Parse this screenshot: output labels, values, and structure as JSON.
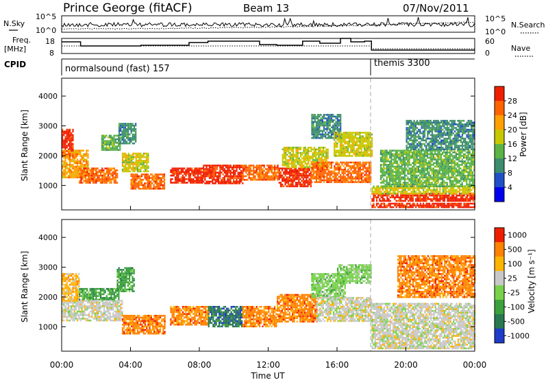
{
  "header": {
    "station": "Prince George (fitACF)",
    "beam": "Beam 13",
    "date": "07/Nov/2011"
  },
  "noise_panel": {
    "left_label": "N.Sky",
    "right_label": "N.Search",
    "left_ticks": [
      "10^5",
      "10^0"
    ],
    "right_ticks": [
      "10^5",
      "10^0"
    ]
  },
  "freq_panel": {
    "left_label_1": "Freq.",
    "left_label_2": "[MHz]",
    "right_label": "Nave",
    "left_ticks": [
      "18",
      "8"
    ],
    "right_ticks": [
      "60",
      "0"
    ]
  },
  "cpid_panel": {
    "label": "CPID",
    "modes": [
      {
        "name": "normalsound (fast) 157",
        "start_hour": 0
      },
      {
        "name": "themis 3300",
        "start_hour": 18
      }
    ]
  },
  "chart_data": [
    {
      "type": "heatmap",
      "name": "power",
      "ylabel": "Slant Range [km]",
      "ylim": [
        180,
        4600
      ],
      "yticks": [
        "1000",
        "2000",
        "3000",
        "4000"
      ],
      "xlim": [
        0,
        24
      ],
      "colorbar": {
        "label": "Power [dB]",
        "tick_labels": [
          "4",
          "8",
          "12",
          "16",
          "20",
          "24",
          "28"
        ],
        "colors": [
          "#0000f0",
          "#2050c8",
          "#3c8c6e",
          "#5ab446",
          "#c8c800",
          "#ffa000",
          "#ff6400",
          "#f01e00"
        ]
      },
      "bands": [
        {
          "t0": 0.0,
          "t1": 0.7,
          "r0": 2000,
          "r1": 2900,
          "c": 7
        },
        {
          "t0": 0.0,
          "t1": 1.5,
          "r0": 1300,
          "r1": 2200,
          "c": 5
        },
        {
          "t0": 1.0,
          "t1": 3.2,
          "r0": 1100,
          "r1": 1600,
          "c": 6
        },
        {
          "t0": 2.3,
          "t1": 3.4,
          "r0": 2200,
          "r1": 2700,
          "c": 3
        },
        {
          "t0": 3.3,
          "t1": 4.3,
          "r0": 2400,
          "r1": 3100,
          "c": 2
        },
        {
          "t0": 3.5,
          "t1": 5.0,
          "r0": 1500,
          "r1": 2100,
          "c": 4
        },
        {
          "t0": 4.0,
          "t1": 6.0,
          "r0": 900,
          "r1": 1400,
          "c": 6
        },
        {
          "t0": 6.3,
          "t1": 8.2,
          "r0": 1100,
          "r1": 1600,
          "c": 7
        },
        {
          "t0": 8.2,
          "t1": 10.5,
          "r0": 1100,
          "r1": 1700,
          "c": 7
        },
        {
          "t0": 10.5,
          "t1": 12.6,
          "r0": 1200,
          "r1": 1700,
          "c": 6
        },
        {
          "t0": 12.6,
          "t1": 14.5,
          "r0": 1000,
          "r1": 1600,
          "c": 7
        },
        {
          "t0": 12.8,
          "t1": 15.5,
          "r0": 1600,
          "r1": 2300,
          "c": 4
        },
        {
          "t0": 14.5,
          "t1": 16.2,
          "r0": 2600,
          "r1": 3400,
          "c": 2
        },
        {
          "t0": 14.5,
          "t1": 18.0,
          "r0": 1100,
          "r1": 1800,
          "c": 6
        },
        {
          "t0": 15.8,
          "t1": 18.0,
          "r0": 2000,
          "r1": 2800,
          "c": 4
        },
        {
          "t0": 18.0,
          "t1": 24.0,
          "r0": 250,
          "r1": 420,
          "c": 7
        },
        {
          "t0": 18.0,
          "t1": 24.0,
          "r0": 500,
          "r1": 750,
          "c": 7
        },
        {
          "t0": 18.0,
          "t1": 24.0,
          "r0": 750,
          "r1": 1000,
          "c": 4
        },
        {
          "t0": 18.5,
          "t1": 24.0,
          "r0": 1000,
          "r1": 2200,
          "c": 3
        },
        {
          "t0": 20.0,
          "t1": 24.0,
          "r0": 2200,
          "r1": 3200,
          "c": 2
        }
      ]
    },
    {
      "type": "heatmap",
      "name": "velocity",
      "ylabel": "Slant Range [km]",
      "xlabel": "Time UT",
      "ylim": [
        180,
        4600
      ],
      "yticks": [
        "1000",
        "2000",
        "3000",
        "4000"
      ],
      "xlim": [
        0,
        24
      ],
      "xticks": [
        "00:00",
        "04:00",
        "08:00",
        "12:00",
        "16:00",
        "20:00",
        "00:00"
      ],
      "colorbar": {
        "label": "Velocity [m s⁻¹]",
        "tick_labels": [
          "1000",
          "500",
          "100",
          "25",
          "-25",
          "-100",
          "-500",
          "-1000"
        ],
        "colors": [
          "#1e3cc8",
          "#287850",
          "#3ca03c",
          "#78d24b",
          "#c8c8c8",
          "#ffb400",
          "#ff8200",
          "#f01e00"
        ]
      },
      "bands": [
        {
          "t0": 0.0,
          "t1": 1.2,
          "r0": 1200,
          "r1": 1900,
          "c": 4
        },
        {
          "t0": 0.0,
          "t1": 1.0,
          "r0": 1900,
          "r1": 2800,
          "c": 5
        },
        {
          "t0": 1.0,
          "t1": 3.3,
          "r0": 1900,
          "r1": 2300,
          "c": 2
        },
        {
          "t0": 1.2,
          "t1": 3.5,
          "r0": 1200,
          "r1": 1900,
          "c": 4
        },
        {
          "t0": 3.2,
          "t1": 4.2,
          "r0": 2200,
          "r1": 3000,
          "c": 2
        },
        {
          "t0": 3.5,
          "t1": 6.0,
          "r0": 800,
          "r1": 1400,
          "c": 6
        },
        {
          "t0": 6.3,
          "t1": 8.5,
          "r0": 1100,
          "r1": 1700,
          "c": 6
        },
        {
          "t0": 8.5,
          "t1": 10.5,
          "r0": 1000,
          "r1": 1700,
          "c": 1
        },
        {
          "t0": 10.5,
          "t1": 12.5,
          "r0": 1000,
          "r1": 1700,
          "c": 6
        },
        {
          "t0": 12.5,
          "t1": 14.8,
          "r0": 1200,
          "r1": 2100,
          "c": 6
        },
        {
          "t0": 14.5,
          "t1": 16.5,
          "r0": 2000,
          "r1": 2800,
          "c": 3
        },
        {
          "t0": 14.8,
          "t1": 18.0,
          "r0": 1200,
          "r1": 2000,
          "c": 4
        },
        {
          "t0": 16.0,
          "t1": 18.0,
          "r0": 2500,
          "r1": 3100,
          "c": 3
        },
        {
          "t0": 18.0,
          "t1": 24.0,
          "r0": 300,
          "r1": 1800,
          "c": 4
        },
        {
          "t0": 19.5,
          "t1": 24.0,
          "r0": 2000,
          "r1": 3400,
          "c": 6
        }
      ]
    }
  ]
}
